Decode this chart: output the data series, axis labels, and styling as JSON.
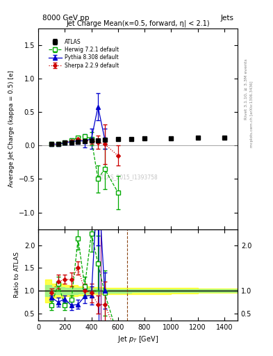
{
  "title_top": "8000 GeV pp",
  "title_top_right": "Jets",
  "main_title": "Jet Charge Mean(κ=0.5, forward, η| < 2.1)",
  "xlabel": "Jet p_{T} [GeV]",
  "ylabel_main": "Average Jet Charge (kappa = 0.5) [e]",
  "ylabel_ratio": "Ratio to ATLAS",
  "right_label_top": "Rivet 3.1.10, ≥ 3.3M events",
  "right_label_bot": "mcplots.cern.ch [arXiv:1306.3436]",
  "watermark": "ATLAS_2015_I1393758",
  "atlas_x": [
    100,
    150,
    200,
    250,
    300,
    350,
    400,
    450,
    500,
    600,
    700,
    800,
    1000,
    1200,
    1400
  ],
  "atlas_y": [
    0.02,
    0.02,
    0.04,
    0.05,
    0.06,
    0.07,
    0.08,
    0.08,
    0.09,
    0.1,
    0.1,
    0.11,
    0.11,
    0.12,
    0.12
  ],
  "atlas_yerr": [
    0.01,
    0.01,
    0.01,
    0.01,
    0.01,
    0.01,
    0.01,
    0.02,
    0.02,
    0.02,
    0.02,
    0.02,
    0.02,
    0.02,
    0.02
  ],
  "herwig_x": [
    100,
    150,
    200,
    250,
    300,
    350,
    400,
    450,
    500,
    600
  ],
  "herwig_y": [
    0.02,
    0.02,
    0.05,
    0.08,
    0.12,
    0.14,
    0.1,
    -0.5,
    -0.35,
    -0.7
  ],
  "herwig_yerr": [
    0.01,
    0.01,
    0.01,
    0.02,
    0.02,
    0.02,
    0.1,
    0.2,
    0.3,
    0.25
  ],
  "pythia_x": [
    100,
    150,
    200,
    250,
    300,
    350,
    400,
    450,
    500
  ],
  "pythia_y": [
    0.02,
    0.02,
    0.04,
    0.06,
    0.07,
    0.07,
    0.1,
    0.58,
    0.1
  ],
  "pythia_yerr": [
    0.02,
    0.02,
    0.02,
    0.05,
    0.05,
    0.1,
    0.15,
    0.2,
    0.15
  ],
  "sherpa_x": [
    100,
    150,
    200,
    250,
    300,
    350,
    400,
    450,
    500,
    600
  ],
  "sherpa_y": [
    0.02,
    0.02,
    0.05,
    0.07,
    0.1,
    0.07,
    0.07,
    0.05,
    0.02,
    -0.15
  ],
  "sherpa_yerr": [
    0.01,
    0.01,
    0.02,
    0.02,
    0.03,
    0.03,
    0.05,
    0.1,
    0.3,
    0.15
  ],
  "herwig_ratio_x": [
    100,
    150,
    200,
    250,
    300,
    350,
    400,
    450,
    500,
    600
  ],
  "herwig_ratio_y": [
    0.68,
    1.15,
    0.68,
    0.8,
    2.15,
    1.1,
    2.25,
    1.6,
    0.95,
    0.0
  ],
  "herwig_ratio_yerr": [
    0.1,
    0.15,
    0.1,
    0.1,
    0.25,
    0.2,
    0.4,
    0.6,
    0.5,
    0.1
  ],
  "pythia_ratio_x": [
    100,
    150,
    200,
    250,
    300,
    350,
    400,
    450,
    500
  ],
  "pythia_ratio_y": [
    0.85,
    0.75,
    0.82,
    0.68,
    0.7,
    0.88,
    0.9,
    3.5,
    1.0
  ],
  "pythia_ratio_yerr": [
    0.05,
    0.1,
    0.08,
    0.1,
    0.1,
    0.15,
    0.2,
    1.5,
    0.4
  ],
  "sherpa_ratio_x": [
    100,
    150,
    200,
    250,
    300,
    350,
    400,
    450,
    500,
    600
  ],
  "sherpa_ratio_y": [
    0.95,
    1.2,
    1.25,
    1.25,
    1.5,
    1.0,
    0.95,
    0.7,
    0.7,
    0.0
  ],
  "sherpa_ratio_yerr": [
    0.1,
    0.15,
    0.1,
    0.15,
    0.15,
    0.15,
    0.2,
    0.2,
    0.5,
    0.1
  ],
  "atlas_band_yellow_x": [
    50,
    100,
    200,
    300,
    400,
    500,
    700,
    1000,
    1200,
    1500
  ],
  "atlas_band_yellow_lo": [
    0.75,
    0.75,
    0.85,
    0.88,
    0.9,
    0.92,
    0.93,
    0.93,
    0.94,
    0.95
  ],
  "atlas_band_yellow_hi": [
    1.25,
    1.25,
    1.15,
    1.12,
    1.1,
    1.08,
    1.07,
    1.07,
    1.06,
    1.05
  ],
  "atlas_band_green_x": [
    50,
    100,
    200,
    300,
    400,
    500,
    700,
    1000,
    1200,
    1500
  ],
  "atlas_band_green_lo": [
    0.88,
    0.88,
    0.92,
    0.93,
    0.94,
    0.95,
    0.96,
    0.97,
    0.97,
    0.97
  ],
  "atlas_band_green_hi": [
    1.12,
    1.12,
    1.08,
    1.07,
    1.06,
    1.05,
    1.04,
    1.03,
    1.03,
    1.03
  ],
  "color_herwig": "#00aa00",
  "color_pythia": "#0000cc",
  "color_sherpa": "#cc0000",
  "color_atlas": "#000000",
  "ylim_main": [
    -1.25,
    1.75
  ],
  "ylim_ratio": [
    0.35,
    2.35
  ],
  "xlim": [
    0,
    1500
  ],
  "vline_blue_x": 455,
  "vline_purple_x": 470,
  "vline_red_x": 670
}
